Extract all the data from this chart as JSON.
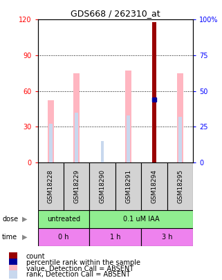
{
  "title": "GDS668 / 262310_at",
  "samples": [
    "GSM18228",
    "GSM18229",
    "GSM18290",
    "GSM18291",
    "GSM18294",
    "GSM18295"
  ],
  "value_absent": [
    52,
    75,
    0,
    77,
    0,
    75
  ],
  "rank_absent": [
    27,
    35,
    15,
    33,
    0,
    32
  ],
  "count": [
    0,
    0,
    0,
    0,
    118,
    0
  ],
  "percentile_rank": [
    0,
    0,
    0,
    0,
    44,
    0
  ],
  "ylim_left": [
    0,
    120
  ],
  "ylim_right": [
    0,
    100
  ],
  "yticks_left": [
    0,
    30,
    60,
    90,
    120
  ],
  "yticks_right": [
    0,
    25,
    50,
    75,
    100
  ],
  "yticklabels_left": [
    "0",
    "30",
    "60",
    "90",
    "120"
  ],
  "yticklabels_right": [
    "0",
    "25",
    "50",
    "75",
    "100%"
  ],
  "color_value_absent": "#FFB6C1",
  "color_rank_absent": "#C8D8EE",
  "color_count": "#990000",
  "color_percentile": "#000099",
  "legend_items": [
    {
      "color": "#990000",
      "label": "count"
    },
    {
      "color": "#000099",
      "label": "percentile rank within the sample"
    },
    {
      "color": "#FFB6C1",
      "label": "value, Detection Call = ABSENT"
    },
    {
      "color": "#C8D8EE",
      "label": "rank, Detection Call = ABSENT"
    }
  ]
}
